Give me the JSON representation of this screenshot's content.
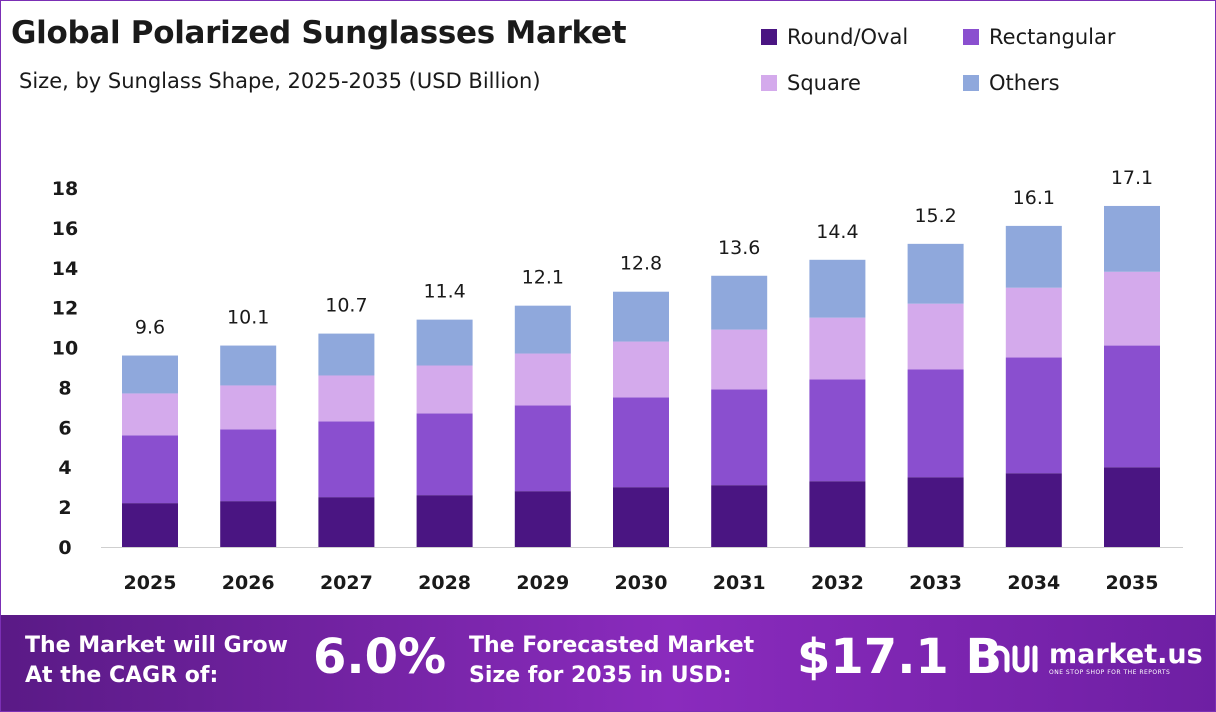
{
  "header": {
    "title": "Global Polarized Sunglasses Market",
    "subtitle": "Size, by Sunglass Shape, 2025-2035 (USD Billion)"
  },
  "chart_data": {
    "type": "bar",
    "stacked": true,
    "categories": [
      "2025",
      "2026",
      "2027",
      "2028",
      "2029",
      "2030",
      "2031",
      "2032",
      "2033",
      "2034",
      "2035"
    ],
    "series": [
      {
        "name": "Round/Oval",
        "color": "#4a1582",
        "values": [
          2.2,
          2.3,
          2.5,
          2.6,
          2.8,
          3.0,
          3.1,
          3.3,
          3.5,
          3.7,
          4.0
        ]
      },
      {
        "name": "Rectangular",
        "color": "#8a4fcf",
        "values": [
          3.4,
          3.6,
          3.8,
          4.1,
          4.3,
          4.5,
          4.8,
          5.1,
          5.4,
          5.8,
          6.1
        ]
      },
      {
        "name": "Square",
        "color": "#d4aaec",
        "values": [
          2.1,
          2.2,
          2.3,
          2.4,
          2.6,
          2.8,
          3.0,
          3.1,
          3.3,
          3.5,
          3.7
        ]
      },
      {
        "name": "Others",
        "color": "#8fa8dc",
        "values": [
          1.9,
          2.0,
          2.1,
          2.3,
          2.4,
          2.5,
          2.7,
          2.9,
          3.0,
          3.1,
          3.3
        ]
      }
    ],
    "totals": [
      9.6,
      10.1,
      10.7,
      11.4,
      12.1,
      12.8,
      13.6,
      14.4,
      15.2,
      16.1,
      17.1
    ],
    "total_labels": [
      "9.6",
      "10.1",
      "10.7",
      "11.4",
      "12.1",
      "12.8",
      "13.6",
      "14.4",
      "15.2",
      "16.1",
      "17.1"
    ],
    "yticks": [
      0,
      2,
      4,
      6,
      8,
      10,
      12,
      14,
      16,
      18
    ],
    "ytick_labels": [
      "0",
      "2",
      "4",
      "6",
      "8",
      "10",
      "12",
      "14",
      "16",
      "18"
    ],
    "ylim": [
      0,
      18
    ],
    "grid": false,
    "legend_position": "top-right"
  },
  "footer": {
    "cagr_label_line1": "The Market will Grow",
    "cagr_label_line2": "At the CAGR of:",
    "cagr_value": "6.0%",
    "forecast_label_line1": "The Forecasted Market",
    "forecast_label_line2": "Size for 2035 in USD:",
    "forecast_value": "$17.1 B",
    "logo_text": "market.us",
    "logo_tagline": "ONE STOP SHOP FOR THE REPORTS",
    "logo_icon": "market-us-logo-icon"
  }
}
